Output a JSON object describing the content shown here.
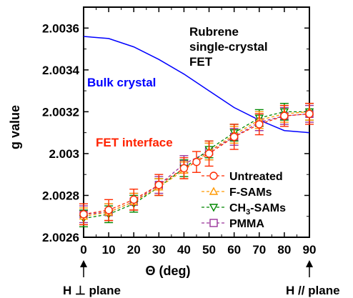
{
  "chart_data": {
    "type": "line",
    "xlabel": "Θ (deg)",
    "ylabel": "g value",
    "xlim": [
      0,
      90
    ],
    "ylim": [
      2.0026,
      2.0037
    ],
    "x_ticks": [
      "0",
      "10",
      "20",
      "30",
      "40",
      "50",
      "60",
      "70",
      "80",
      "90"
    ],
    "y_ticks": [
      "2.0026",
      "2.0028",
      "2.003",
      "2.0032",
      "2.0034",
      "2.0036"
    ],
    "title_lines": [
      "Rubrene",
      "single-crystal",
      "FET"
    ],
    "annotations": {
      "bulk_label": "Bulk crystal",
      "fet_label": "FET interface",
      "bottom_left_prefix": "H ",
      "bottom_left_symbol": "⊥",
      "bottom_left_suffix": " plane",
      "bottom_right": "H // plane"
    },
    "colors": {
      "bulk": "#0000ff",
      "fet_label": "#ff2200",
      "untreated": "#ff2a00",
      "fsams": "#ff9900",
      "ch3sams": "#008800",
      "pmma": "#993399"
    },
    "bulk_curve": {
      "x": [
        0,
        10,
        20,
        30,
        40,
        50,
        60,
        70,
        80,
        90
      ],
      "y": [
        2.00356,
        2.00355,
        2.00351,
        2.00345,
        2.00338,
        2.0033,
        2.00322,
        2.00316,
        2.00311,
        2.0031
      ]
    },
    "series": [
      {
        "name": "Untreated",
        "marker": "circle",
        "x": [
          0,
          10,
          20,
          30,
          40,
          45,
          50,
          60,
          70,
          80,
          90
        ],
        "y": [
          2.00271,
          2.00273,
          2.00278,
          2.00285,
          2.00293,
          2.00296,
          2.003,
          2.00308,
          2.00314,
          2.00318,
          2.00319
        ],
        "err": [
          5e-05,
          5e-05,
          5e-05,
          5e-05,
          5e-05,
          5e-05,
          6e-05,
          6e-05,
          5e-05,
          5e-05,
          5e-05
        ]
      },
      {
        "name": "F-SAMs",
        "marker": "triangle-up",
        "x": [
          0,
          10,
          20,
          30,
          40,
          50,
          60,
          70,
          80,
          90
        ],
        "y": [
          2.0027,
          2.00272,
          2.00277,
          2.00284,
          2.00292,
          2.00301,
          2.00309,
          2.00316,
          2.00319,
          2.0032
        ],
        "err": [
          4e-05,
          4e-05,
          4e-05,
          4e-05,
          4e-05,
          4e-05,
          4e-05,
          4e-05,
          4e-05,
          4e-05
        ]
      },
      {
        "name": "CH3-SAMs",
        "marker": "triangle-down",
        "x": [
          0,
          10,
          20,
          30,
          40,
          50,
          60,
          70,
          80,
          90
        ],
        "y": [
          2.00269,
          2.00271,
          2.00276,
          2.00284,
          2.00293,
          2.00302,
          2.0031,
          2.00317,
          2.0032,
          2.0032
        ],
        "err": [
          4e-05,
          4e-05,
          4e-05,
          4e-05,
          4e-05,
          4e-05,
          4e-05,
          4e-05,
          4e-05,
          4e-05
        ]
      },
      {
        "name": "PMMA",
        "marker": "square",
        "x": [
          0,
          10,
          20,
          30,
          40,
          50,
          60,
          70,
          80,
          90
        ],
        "y": [
          2.00271,
          2.00272,
          2.00277,
          2.00285,
          2.00295,
          2.00301,
          2.00308,
          2.00315,
          2.00318,
          2.00319
        ],
        "err": [
          4e-05,
          4e-05,
          4e-05,
          4e-05,
          4e-05,
          4e-05,
          4e-05,
          4e-05,
          4e-05,
          4e-05
        ]
      }
    ],
    "legend": [
      {
        "label": "Untreated",
        "series": 0
      },
      {
        "label": "F-SAMs",
        "series": 1
      },
      {
        "label_main": "CH",
        "label_sub": "3",
        "label_rest": "-SAMs",
        "series": 2
      },
      {
        "label": "PMMA",
        "series": 3
      }
    ],
    "legend_position": "bottom-right",
    "grid": false
  }
}
